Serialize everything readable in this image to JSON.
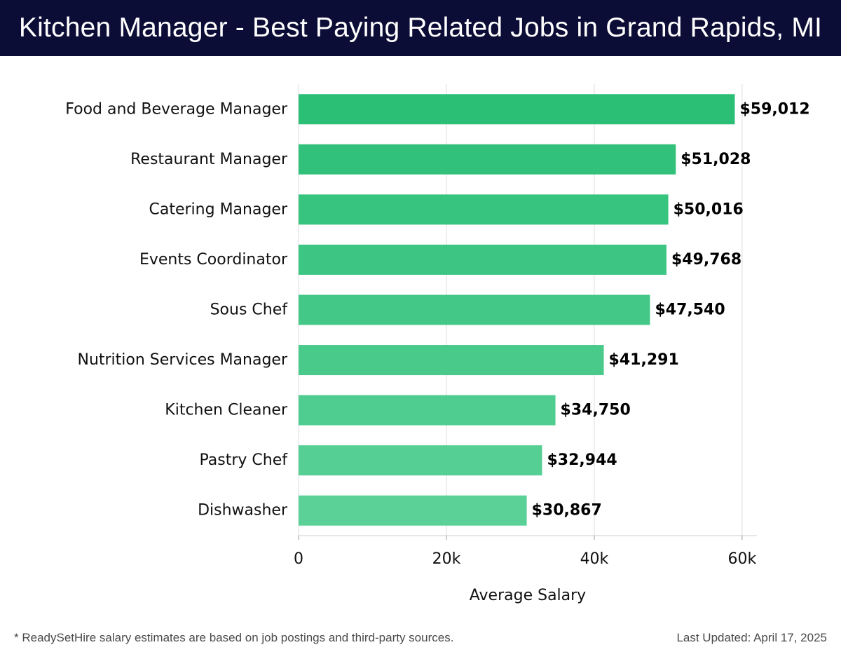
{
  "title": "Kitchen Manager - Best Paying Related Jobs in Grand Rapids, MI",
  "footer": {
    "note": "* ReadySetHire salary estimates are based on job postings and third-party sources.",
    "updated": "Last Updated: April 17, 2025"
  },
  "chart_data": {
    "type": "bar",
    "orientation": "horizontal",
    "categories": [
      "Food and Beverage Manager",
      "Restaurant Manager",
      "Catering Manager",
      "Events Coordinator",
      "Sous Chef",
      "Nutrition Services Manager",
      "Kitchen Cleaner",
      "Pastry Chef",
      "Dishwasher"
    ],
    "values": [
      59012,
      51028,
      50016,
      49768,
      47540,
      41291,
      34750,
      32944,
      30867
    ],
    "value_labels": [
      "$59,012",
      "$51,028",
      "$50,016",
      "$49,768",
      "$47,540",
      "$41,291",
      "$34,750",
      "$32,944",
      "$30,867"
    ],
    "xlabel": "Average Salary",
    "xlim": [
      0,
      62000
    ],
    "xticks": [
      0,
      20000,
      40000,
      60000
    ],
    "xtick_labels": [
      "0",
      "20k",
      "40k",
      "60k"
    ],
    "grid": true,
    "colors": {
      "bar_top": "#2bbf76",
      "bar_bottom": "#5bd198",
      "grid": "#dddddd",
      "axis": "#cccccc"
    }
  }
}
